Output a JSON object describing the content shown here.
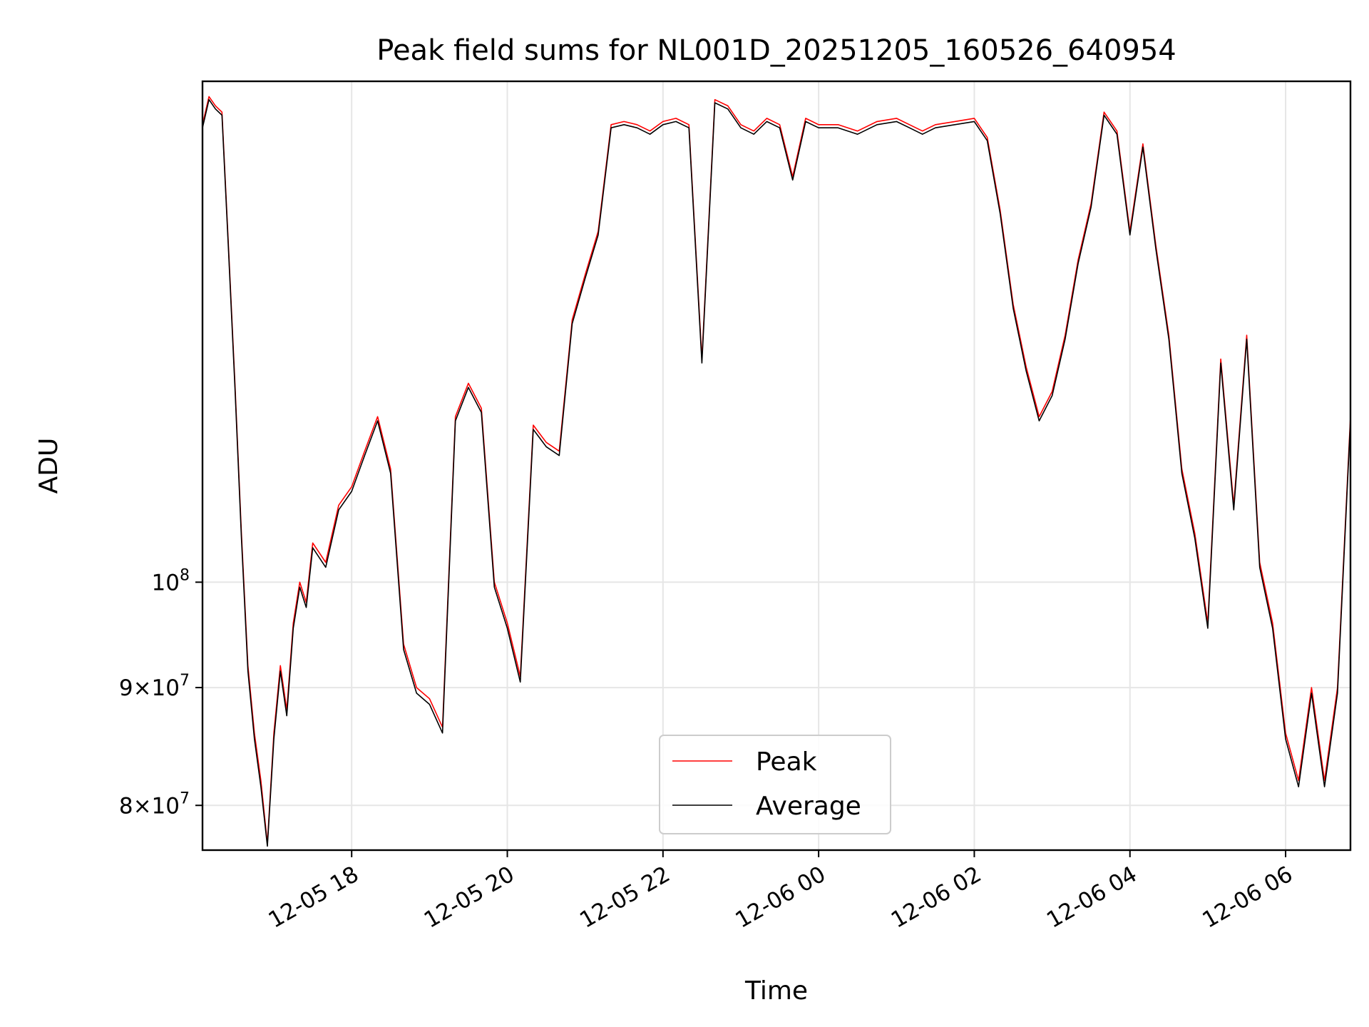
{
  "chart_data": {
    "type": "line",
    "title": "Peak field sums for NL001D_20251205_160526_640954",
    "xlabel": "Time",
    "ylabel": "ADU",
    "x_range": [
      "2025-12-05 16:05",
      "2025-12-06 06:50"
    ],
    "ylim": [
      76500000,
      165000000
    ],
    "y_scale": "log",
    "grid": true,
    "legend_position": "lower center",
    "x_ticks": [
      "12-05 18",
      "12-05 20",
      "12-05 22",
      "12-06 00",
      "12-06 02",
      "12-06 04",
      "12-06 06"
    ],
    "y_ticks": [
      {
        "value": 80000000,
        "base": "8",
        "exp": "7"
      },
      {
        "value": 90000000,
        "base": "9",
        "exp": "7"
      },
      {
        "value": 100000000,
        "base": "",
        "exp": "8"
      }
    ],
    "series": [
      {
        "name": "Peak",
        "color": "#ff0000"
      },
      {
        "name": "Average",
        "color": "#000000"
      }
    ],
    "x": [
      "2025-12-05 16:05",
      "2025-12-05 16:10",
      "2025-12-05 16:15",
      "2025-12-05 16:20",
      "2025-12-05 16:25",
      "2025-12-05 16:30",
      "2025-12-05 16:35",
      "2025-12-05 16:40",
      "2025-12-05 16:45",
      "2025-12-05 16:50",
      "2025-12-05 16:55",
      "2025-12-05 17:00",
      "2025-12-05 17:05",
      "2025-12-05 17:10",
      "2025-12-05 17:15",
      "2025-12-05 17:20",
      "2025-12-05 17:25",
      "2025-12-05 17:30",
      "2025-12-05 17:40",
      "2025-12-05 17:50",
      "2025-12-05 18:00",
      "2025-12-05 18:10",
      "2025-12-05 18:20",
      "2025-12-05 18:30",
      "2025-12-05 18:40",
      "2025-12-05 18:50",
      "2025-12-05 19:00",
      "2025-12-05 19:10",
      "2025-12-05 19:20",
      "2025-12-05 19:30",
      "2025-12-05 19:40",
      "2025-12-05 19:50",
      "2025-12-05 20:00",
      "2025-12-05 20:10",
      "2025-12-05 20:20",
      "2025-12-05 20:30",
      "2025-12-05 20:40",
      "2025-12-05 20:50",
      "2025-12-05 21:00",
      "2025-12-05 21:10",
      "2025-12-05 21:20",
      "2025-12-05 21:30",
      "2025-12-05 21:40",
      "2025-12-05 21:50",
      "2025-12-05 22:00",
      "2025-12-05 22:10",
      "2025-12-05 22:20",
      "2025-12-05 22:30",
      "2025-12-05 22:40",
      "2025-12-05 22:50",
      "2025-12-05 23:00",
      "2025-12-05 23:10",
      "2025-12-05 23:20",
      "2025-12-05 23:30",
      "2025-12-05 23:40",
      "2025-12-05 23:50",
      "2025-12-06 00:00",
      "2025-12-06 00:15",
      "2025-12-06 00:30",
      "2025-12-06 00:45",
      "2025-12-06 01:00",
      "2025-12-06 01:10",
      "2025-12-06 01:20",
      "2025-12-06 01:30",
      "2025-12-06 01:45",
      "2025-12-06 02:00",
      "2025-12-06 02:10",
      "2025-12-06 02:20",
      "2025-12-06 02:30",
      "2025-12-06 02:40",
      "2025-12-06 02:50",
      "2025-12-06 03:00",
      "2025-12-06 03:10",
      "2025-12-06 03:20",
      "2025-12-06 03:30",
      "2025-12-06 03:40",
      "2025-12-06 03:50",
      "2025-12-06 04:00",
      "2025-12-06 04:10",
      "2025-12-06 04:20",
      "2025-12-06 04:30",
      "2025-12-06 04:40",
      "2025-12-06 04:50",
      "2025-12-06 05:00",
      "2025-12-06 05:10",
      "2025-12-06 05:20",
      "2025-12-06 05:30",
      "2025-12-06 05:40",
      "2025-12-06 05:50",
      "2025-12-06 06:00",
      "2025-12-06 06:10",
      "2025-12-06 06:20",
      "2025-12-06 06:30",
      "2025-12-06 06:40",
      "2025-12-06 06:50"
    ],
    "peak": [
      158.0,
      162.5,
      161.0,
      160.0,
      140.0,
      122.0,
      105.0,
      92.0,
      86.0,
      82.0,
      77.0,
      86.0,
      92.0,
      88.0,
      96.0,
      100.0,
      98.0,
      104.0,
      102.0,
      108.0,
      110.0,
      114.0,
      118.0,
      112.0,
      94.0,
      90.0,
      89.0,
      86.5,
      118.0,
      122.0,
      119.0,
      100.0,
      96.0,
      91.0,
      117.0,
      115.0,
      114.0,
      130.0,
      136.0,
      142.0,
      158.0,
      158.5,
      158.0,
      157.0,
      158.5,
      159.0,
      158.0,
      125.0,
      162.0,
      161.0,
      158.0,
      157.0,
      159.0,
      158.0,
      150.0,
      159.0,
      158.0,
      158.0,
      157.0,
      158.5,
      159.0,
      158.0,
      157.0,
      158.0,
      158.5,
      159.0,
      156.0,
      145.0,
      132.0,
      124.0,
      118.0,
      121.0,
      128.0,
      138.0,
      146.0,
      160.0,
      157.0,
      142.0,
      155.0,
      140.0,
      128.0,
      112.0,
      105.0,
      96.0,
      125.0,
      108.0,
      128.0,
      102.0,
      96.0,
      86.0,
      82.0,
      90.0,
      82.0,
      90.0,
      118.0
    ],
    "average": [
      157.5,
      162.0,
      160.5,
      159.5,
      139.5,
      121.5,
      104.5,
      91.5,
      85.5,
      81.5,
      76.8,
      85.5,
      91.5,
      87.5,
      95.5,
      99.5,
      97.5,
      103.5,
      101.5,
      107.5,
      109.5,
      113.5,
      117.5,
      111.5,
      93.5,
      89.5,
      88.5,
      86.0,
      117.5,
      121.5,
      118.5,
      99.5,
      95.5,
      90.5,
      116.5,
      114.5,
      113.5,
      129.5,
      135.5,
      141.5,
      157.5,
      158.0,
      157.5,
      156.5,
      158.0,
      158.5,
      157.5,
      124.5,
      161.5,
      160.5,
      157.5,
      156.5,
      158.5,
      157.5,
      149.5,
      158.5,
      157.5,
      157.5,
      156.5,
      158.0,
      158.5,
      157.5,
      156.5,
      157.5,
      158.0,
      158.5,
      155.5,
      144.5,
      131.5,
      123.5,
      117.5,
      120.5,
      127.5,
      137.5,
      145.5,
      159.5,
      156.5,
      141.5,
      154.5,
      139.5,
      127.5,
      111.5,
      104.5,
      95.5,
      124.5,
      107.5,
      127.5,
      101.5,
      95.5,
      85.5,
      81.5,
      89.5,
      81.5,
      89.5,
      117.5
    ],
    "y_units_multiplier": 1000000
  }
}
